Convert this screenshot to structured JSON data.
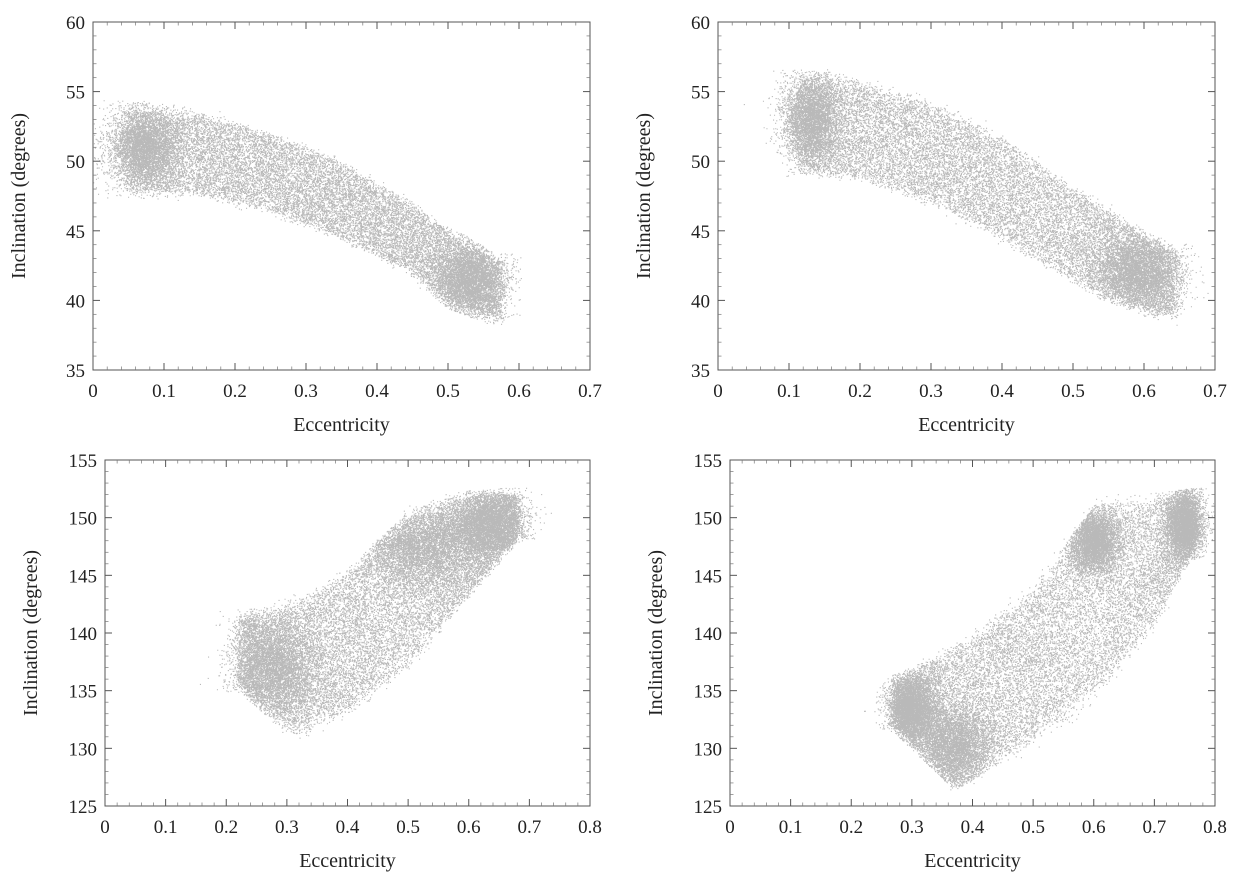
{
  "chart_data": [
    {
      "type": "scatter",
      "xlabel": "Eccentricity",
      "ylabel": "Inclination (degrees)",
      "xlim": [
        0,
        0.7
      ],
      "ylim": [
        35,
        60
      ],
      "xticks": [
        0,
        0.1,
        0.2,
        0.3,
        0.4,
        0.5,
        0.6,
        0.7
      ],
      "yticks": [
        35,
        40,
        45,
        50,
        55,
        60
      ],
      "xtick_labels": [
        "0",
        "0.1",
        "0.2",
        "0.3",
        "0.4",
        "0.5",
        "0.6",
        "0.7"
      ],
      "ytick_labels": [
        "35",
        "40",
        "45",
        "50",
        "55",
        "60"
      ],
      "point_color": "#2b2b2b",
      "band": {
        "upper": [
          [
            0.06,
            53.8
          ],
          [
            0.15,
            53.3
          ],
          [
            0.25,
            51.9
          ],
          [
            0.35,
            49.8
          ],
          [
            0.45,
            46.8
          ],
          [
            0.52,
            44.3
          ],
          [
            0.565,
            42.8
          ]
        ],
        "lower": [
          [
            0.05,
            48.0
          ],
          [
            0.15,
            47.7
          ],
          [
            0.25,
            46.5
          ],
          [
            0.35,
            44.6
          ],
          [
            0.45,
            42.0
          ],
          [
            0.5,
            40.0
          ],
          [
            0.575,
            38.6
          ]
        ]
      },
      "dense_clusters": [
        {
          "e": 0.07,
          "i": 51.0,
          "se": 0.025,
          "si": 1.4
        },
        {
          "e": 0.53,
          "i": 41.5,
          "se": 0.025,
          "si": 1.3
        }
      ]
    },
    {
      "type": "scatter",
      "xlabel": "Eccentricity",
      "ylabel": "Inclination (degrees)",
      "xlim": [
        0,
        0.7
      ],
      "ylim": [
        35,
        60
      ],
      "xticks": [
        0,
        0.1,
        0.2,
        0.3,
        0.4,
        0.5,
        0.6,
        0.7
      ],
      "yticks": [
        35,
        40,
        45,
        50,
        55,
        60
      ],
      "xtick_labels": [
        "0",
        "0.1",
        "0.2",
        "0.3",
        "0.4",
        "0.5",
        "0.6",
        "0.7"
      ],
      "ytick_labels": [
        "35",
        "40",
        "45",
        "50",
        "55",
        "60"
      ],
      "point_color": "#2b2b2b",
      "band": {
        "upper": [
          [
            0.12,
            56.0
          ],
          [
            0.2,
            55.6
          ],
          [
            0.3,
            54.0
          ],
          [
            0.4,
            51.5
          ],
          [
            0.5,
            48.0
          ],
          [
            0.6,
            44.6
          ],
          [
            0.64,
            43.5
          ]
        ],
        "lower": [
          [
            0.115,
            49.5
          ],
          [
            0.2,
            48.9
          ],
          [
            0.3,
            47.2
          ],
          [
            0.4,
            44.6
          ],
          [
            0.5,
            41.5
          ],
          [
            0.6,
            39.5
          ],
          [
            0.645,
            38.8
          ]
        ]
      },
      "dense_clusters": [
        {
          "e": 0.13,
          "i": 53.0,
          "se": 0.02,
          "si": 1.6
        },
        {
          "e": 0.59,
          "i": 42.0,
          "se": 0.03,
          "si": 1.3
        }
      ]
    },
    {
      "type": "scatter",
      "xlabel": "Eccentricity",
      "ylabel": "Inclination (degrees)",
      "xlim": [
        0,
        0.8
      ],
      "ylim": [
        125,
        155
      ],
      "xticks": [
        0,
        0.1,
        0.2,
        0.3,
        0.4,
        0.5,
        0.6,
        0.7,
        0.8
      ],
      "yticks": [
        125,
        130,
        135,
        140,
        145,
        150,
        155
      ],
      "xtick_labels": [
        "0",
        "0.1",
        "0.2",
        "0.3",
        "0.4",
        "0.5",
        "0.6",
        "0.7",
        "0.8"
      ],
      "ytick_labels": [
        "125",
        "130",
        "135",
        "140",
        "145",
        "150",
        "155"
      ],
      "point_color": "#2b2b2b",
      "band": {
        "upper": [
          [
            0.22,
            141.5
          ],
          [
            0.3,
            142.0
          ],
          [
            0.4,
            145.0
          ],
          [
            0.5,
            150.0
          ],
          [
            0.6,
            151.8
          ],
          [
            0.66,
            152.0
          ]
        ],
        "lower": [
          [
            0.22,
            135.5
          ],
          [
            0.31,
            131.5
          ],
          [
            0.4,
            133.5
          ],
          [
            0.5,
            137.5
          ],
          [
            0.6,
            143.5
          ],
          [
            0.68,
            148.5
          ]
        ]
      },
      "dense_clusters": [
        {
          "e": 0.28,
          "i": 137.0,
          "se": 0.035,
          "si": 2.2
        },
        {
          "e": 0.52,
          "i": 147.5,
          "se": 0.05,
          "si": 1.8
        },
        {
          "e": 0.63,
          "i": 149.5,
          "se": 0.03,
          "si": 1.4
        }
      ]
    },
    {
      "type": "scatter",
      "xlabel": "Eccentricity",
      "ylabel": "Inclination (degrees)",
      "xlim": [
        0,
        0.8
      ],
      "ylim": [
        125,
        155
      ],
      "xticks": [
        0,
        0.1,
        0.2,
        0.3,
        0.4,
        0.5,
        0.6,
        0.7,
        0.8
      ],
      "yticks": [
        125,
        130,
        135,
        140,
        145,
        150,
        155
      ],
      "xtick_labels": [
        "0",
        "0.1",
        "0.2",
        "0.3",
        "0.4",
        "0.5",
        "0.6",
        "0.7",
        "0.8"
      ],
      "ytick_labels": [
        "125",
        "130",
        "135",
        "140",
        "145",
        "150",
        "155"
      ],
      "point_color": "#2b2b2b",
      "band": {
        "upper": [
          [
            0.28,
            136.0
          ],
          [
            0.4,
            139.5
          ],
          [
            0.5,
            143.5
          ],
          [
            0.6,
            150.5
          ],
          [
            0.7,
            151.5
          ],
          [
            0.76,
            152.0
          ]
        ],
        "lower": [
          [
            0.27,
            132.0
          ],
          [
            0.37,
            127.0
          ],
          [
            0.5,
            131.0
          ],
          [
            0.6,
            135.0
          ],
          [
            0.7,
            141.0
          ],
          [
            0.76,
            147.0
          ]
        ]
      },
      "dense_clusters": [
        {
          "e": 0.3,
          "i": 133.5,
          "se": 0.02,
          "si": 1.4
        },
        {
          "e": 0.37,
          "i": 130.0,
          "se": 0.03,
          "si": 1.8
        },
        {
          "e": 0.6,
          "i": 148.0,
          "se": 0.02,
          "si": 1.4
        },
        {
          "e": 0.75,
          "i": 149.5,
          "se": 0.015,
          "si": 1.5
        }
      ]
    }
  ]
}
